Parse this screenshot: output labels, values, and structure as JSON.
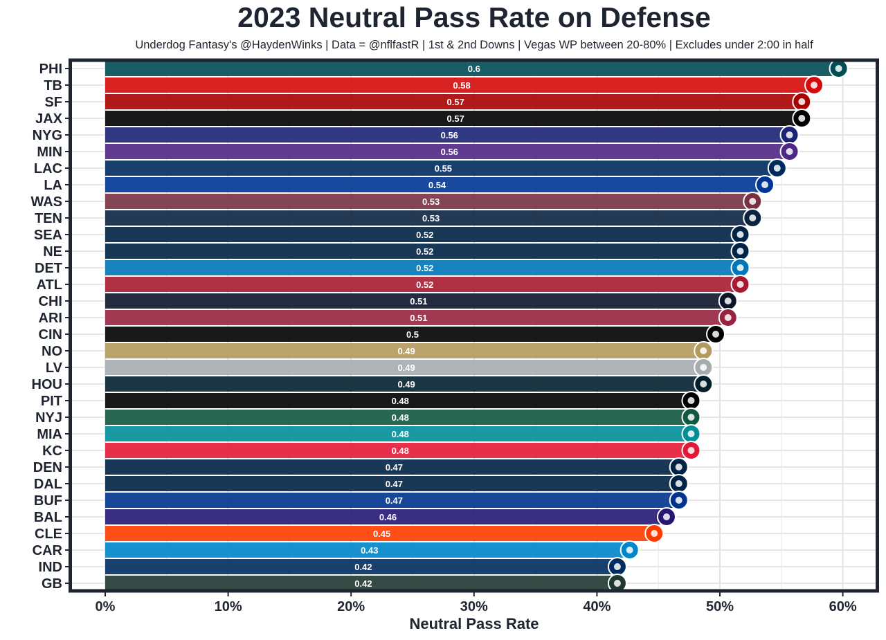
{
  "chart_data": {
    "type": "bar",
    "orientation": "horizontal",
    "title": "2023 Neutral Pass Rate on Defense",
    "subtitle": "Underdog Fantasy's @HaydenWinks | Data = @nflfastR | 1st & 2nd Downs | Vegas WP between 20-80% | Excludes under 2:00 in half",
    "xlabel": "Neutral Pass Rate",
    "ylabel": "",
    "xlim": [
      0,
      0.63
    ],
    "x_ticks": [
      0,
      0.1,
      0.2,
      0.3,
      0.4,
      0.5,
      0.6
    ],
    "x_tick_labels": [
      "0%",
      "10%",
      "20%",
      "30%",
      "40%",
      "50%",
      "60%"
    ],
    "grid": true,
    "categories": [
      "PHI",
      "TB",
      "SF",
      "JAX",
      "NYG",
      "MIN",
      "LAC",
      "LA",
      "WAS",
      "TEN",
      "SEA",
      "NE",
      "DET",
      "ATL",
      "CHI",
      "ARI",
      "CIN",
      "NO",
      "LV",
      "HOU",
      "PIT",
      "NYJ",
      "MIA",
      "KC",
      "DEN",
      "DAL",
      "BUF",
      "BAL",
      "CLE",
      "CAR",
      "IND",
      "GB"
    ],
    "values": [
      0.6,
      0.58,
      0.57,
      0.57,
      0.56,
      0.56,
      0.55,
      0.54,
      0.53,
      0.53,
      0.52,
      0.52,
      0.52,
      0.52,
      0.51,
      0.51,
      0.5,
      0.49,
      0.49,
      0.49,
      0.48,
      0.48,
      0.48,
      0.48,
      0.47,
      0.47,
      0.47,
      0.46,
      0.45,
      0.43,
      0.42,
      0.42
    ],
    "value_labels": [
      "0.6",
      "0.58",
      "0.57",
      "0.57",
      "0.56",
      "0.56",
      "0.55",
      "0.54",
      "0.53",
      "0.53",
      "0.52",
      "0.52",
      "0.52",
      "0.52",
      "0.51",
      "0.51",
      "0.5",
      "0.49",
      "0.49",
      "0.49",
      "0.48",
      "0.48",
      "0.48",
      "0.48",
      "0.47",
      "0.47",
      "0.47",
      "0.46",
      "0.45",
      "0.43",
      "0.42",
      "0.42"
    ],
    "bar_colors": [
      "#004C54",
      "#D50A0A",
      "#AA0000",
      "#000000",
      "#1C2375",
      "#4F2683",
      "#002A5E",
      "#003594",
      "#773141",
      "#0C2340",
      "#002244",
      "#002244",
      "#0076B6",
      "#A71930",
      "#0B162A",
      "#97233F",
      "#000000",
      "#B3995D",
      "#A5ACAF",
      "#03202F",
      "#000000",
      "#125740",
      "#008E97",
      "#E31837",
      "#002244",
      "#002244",
      "#00338D",
      "#241773",
      "#FF3C00",
      "#0085CA",
      "#002C5F",
      "#203731"
    ],
    "bar_opacity": 0.9,
    "logo_markers": true
  }
}
